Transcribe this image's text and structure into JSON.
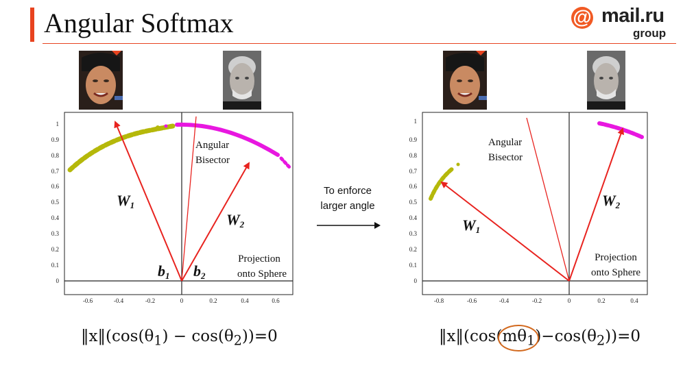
{
  "slide": {
    "title": "Angular Softmax"
  },
  "logo": {
    "name": "mail.ru",
    "sub": "group",
    "at": "@",
    "color": "#f15a24"
  },
  "accent_color": "#e8431f",
  "transition": {
    "line1": "To enforce",
    "line2": "larger angle",
    "icon": "arrow-right-icon"
  },
  "panels": [
    {
      "x_ticks": [
        "-0.6",
        "-0.4",
        "-0.2",
        "0",
        "0.2",
        "0.4",
        "0.6"
      ],
      "y_ticks": [
        "0",
        "0.1",
        "0.2",
        "0.3",
        "0.4",
        "0.5",
        "0.6",
        "0.7",
        "0.8",
        "0.9",
        "1"
      ],
      "w1_label": "W",
      "w1_sub": "1",
      "w2_label": "W",
      "w2_sub": "2",
      "b1_label": "b",
      "b1_sub": "1",
      "b2_label": "b",
      "b2_sub": "2",
      "bisector_line1": "Angular",
      "bisector_line2": "Bisector",
      "projection_line1": "Projection",
      "projection_line2": "onto Sphere",
      "formula": {
        "prefix": "‖x‖(cos(θ",
        "sub1": "1",
        "mid": ") − cos(θ",
        "sub2": "2",
        "suffix": "))=0"
      }
    },
    {
      "x_ticks": [
        "-0.8",
        "-0.6",
        "-0.4",
        "-0.2",
        "0",
        "0.2",
        "0.4"
      ],
      "y_ticks": [
        "0",
        "0.1",
        "0.2",
        "0.3",
        "0.4",
        "0.5",
        "0.6",
        "0.7",
        "0.8",
        "0.9",
        "1"
      ],
      "w1_label": "W",
      "w1_sub": "1",
      "w2_label": "W",
      "w2_sub": "2",
      "bisector_line1": "Angular",
      "bisector_line2": "Bisector",
      "projection_line1": "Projection",
      "projection_line2": "onto Sphere",
      "formula": {
        "prefix": "‖x‖(cos(",
        "highlight": "mθ",
        "highlight_sub": "1",
        "mid": ")−cos(θ",
        "sub2": "2",
        "suffix": "))=0"
      }
    }
  ],
  "colors": {
    "vector": "#e8231f",
    "class1": "#b5b80a",
    "class2": "#e817e0",
    "axis": "#222222"
  }
}
